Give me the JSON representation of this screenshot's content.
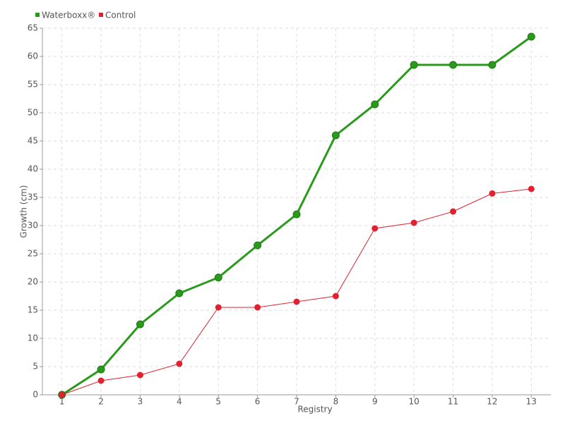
{
  "chart_data": {
    "type": "line",
    "x": [
      1,
      2,
      3,
      4,
      5,
      6,
      7,
      8,
      9,
      10,
      11,
      12,
      13
    ],
    "xlim": [
      0.5,
      13.5
    ],
    "xticks": [
      1,
      2,
      3,
      4,
      5,
      6,
      7,
      8,
      9,
      10,
      11,
      12,
      13
    ],
    "ylim": [
      0,
      65
    ],
    "yticks": [
      0,
      5,
      10,
      15,
      20,
      25,
      30,
      35,
      40,
      45,
      50,
      55,
      60,
      65
    ],
    "x_label": "Registry",
    "y_label": "Growth (cm)",
    "grid": true,
    "legend": "top-left",
    "series": [
      {
        "name": "Waterboxx®",
        "color": "#2a9a1c",
        "values": [
          0,
          4.5,
          12.5,
          18,
          20.8,
          26.5,
          32,
          46,
          51.5,
          58.5,
          58.5,
          58.5,
          63.5
        ]
      },
      {
        "name": "Control",
        "color": "#e02230",
        "values": [
          0,
          2.5,
          3.5,
          5.5,
          15.5,
          15.5,
          16.5,
          17.5,
          29.5,
          30.5,
          32.5,
          35.7,
          36.5
        ]
      }
    ]
  }
}
